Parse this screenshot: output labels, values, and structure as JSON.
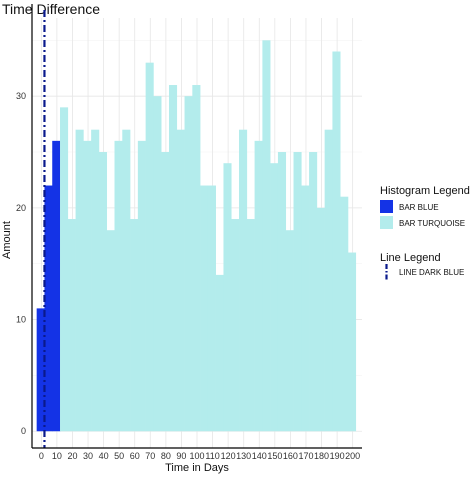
{
  "chart_data": {
    "type": "bar",
    "title": "Time Difference",
    "xlabel": "Time in Days",
    "ylabel": "Amount",
    "xlim": [
      -6,
      206
    ],
    "ylim": [
      -1.5,
      37
    ],
    "xticks": [
      0,
      10,
      20,
      30,
      40,
      50,
      60,
      70,
      80,
      90,
      100,
      110,
      120,
      130,
      140,
      150,
      160,
      170,
      180,
      190,
      200
    ],
    "yticks": [
      0,
      10,
      20,
      30
    ],
    "grid": true,
    "bin_width": 5,
    "series": [
      {
        "name": "BAR BLUE",
        "color": "#1433e6",
        "bins": [
          {
            "x0": -3,
            "x1": 2,
            "value": 11
          },
          {
            "x0": 2,
            "x1": 7,
            "value": 22
          },
          {
            "x0": 7,
            "x1": 12,
            "value": 26
          }
        ]
      },
      {
        "name": "BAR TURQUOISE",
        "color": "#b3ecec",
        "bins": [
          {
            "x0": 12,
            "x1": 17,
            "value": 29
          },
          {
            "x0": 17,
            "x1": 22,
            "value": 19
          },
          {
            "x0": 22,
            "x1": 27,
            "value": 27
          },
          {
            "x0": 27,
            "x1": 32,
            "value": 26
          },
          {
            "x0": 32,
            "x1": 37,
            "value": 27
          },
          {
            "x0": 37,
            "x1": 42,
            "value": 25
          },
          {
            "x0": 42,
            "x1": 47,
            "value": 18
          },
          {
            "x0": 47,
            "x1": 52,
            "value": 26
          },
          {
            "x0": 52,
            "x1": 57,
            "value": 27
          },
          {
            "x0": 57,
            "x1": 62,
            "value": 19
          },
          {
            "x0": 62,
            "x1": 67,
            "value": 26
          },
          {
            "x0": 67,
            "x1": 72,
            "value": 33
          },
          {
            "x0": 72,
            "x1": 77,
            "value": 30
          },
          {
            "x0": 77,
            "x1": 82,
            "value": 25
          },
          {
            "x0": 82,
            "x1": 87,
            "value": 31
          },
          {
            "x0": 87,
            "x1": 92,
            "value": 27
          },
          {
            "x0": 92,
            "x1": 97,
            "value": 30
          },
          {
            "x0": 97,
            "x1": 102,
            "value": 31
          },
          {
            "x0": 102,
            "x1": 107,
            "value": 22
          },
          {
            "x0": 107,
            "x1": 112,
            "value": 22
          },
          {
            "x0": 112,
            "x1": 117,
            "value": 14
          },
          {
            "x0": 117,
            "x1": 122,
            "value": 24
          },
          {
            "x0": 122,
            "x1": 127,
            "value": 19
          },
          {
            "x0": 127,
            "x1": 132,
            "value": 27
          },
          {
            "x0": 132,
            "x1": 137,
            "value": 19
          },
          {
            "x0": 137,
            "x1": 142,
            "value": 26
          },
          {
            "x0": 142,
            "x1": 147,
            "value": 35
          },
          {
            "x0": 147,
            "x1": 152,
            "value": 24
          },
          {
            "x0": 152,
            "x1": 157,
            "value": 25
          },
          {
            "x0": 157,
            "x1": 162,
            "value": 18
          },
          {
            "x0": 162,
            "x1": 167,
            "value": 25
          },
          {
            "x0": 167,
            "x1": 172,
            "value": 22
          },
          {
            "x0": 172,
            "x1": 177,
            "value": 25
          },
          {
            "x0": 177,
            "x1": 182,
            "value": 20
          },
          {
            "x0": 182,
            "x1": 187,
            "value": 27
          },
          {
            "x0": 187,
            "x1": 192,
            "value": 34
          },
          {
            "x0": 192,
            "x1": 197,
            "value": 21
          },
          {
            "x0": 197,
            "x1": 202,
            "value": 16
          }
        ]
      }
    ],
    "vline": {
      "name": "LINE DARK BLUE",
      "x": 2,
      "color": "#0a1a8c",
      "style": "dashdot"
    },
    "legend": {
      "placement": "right",
      "histogram_title": "Histogram Legend",
      "line_title": "Line Legend"
    }
  }
}
